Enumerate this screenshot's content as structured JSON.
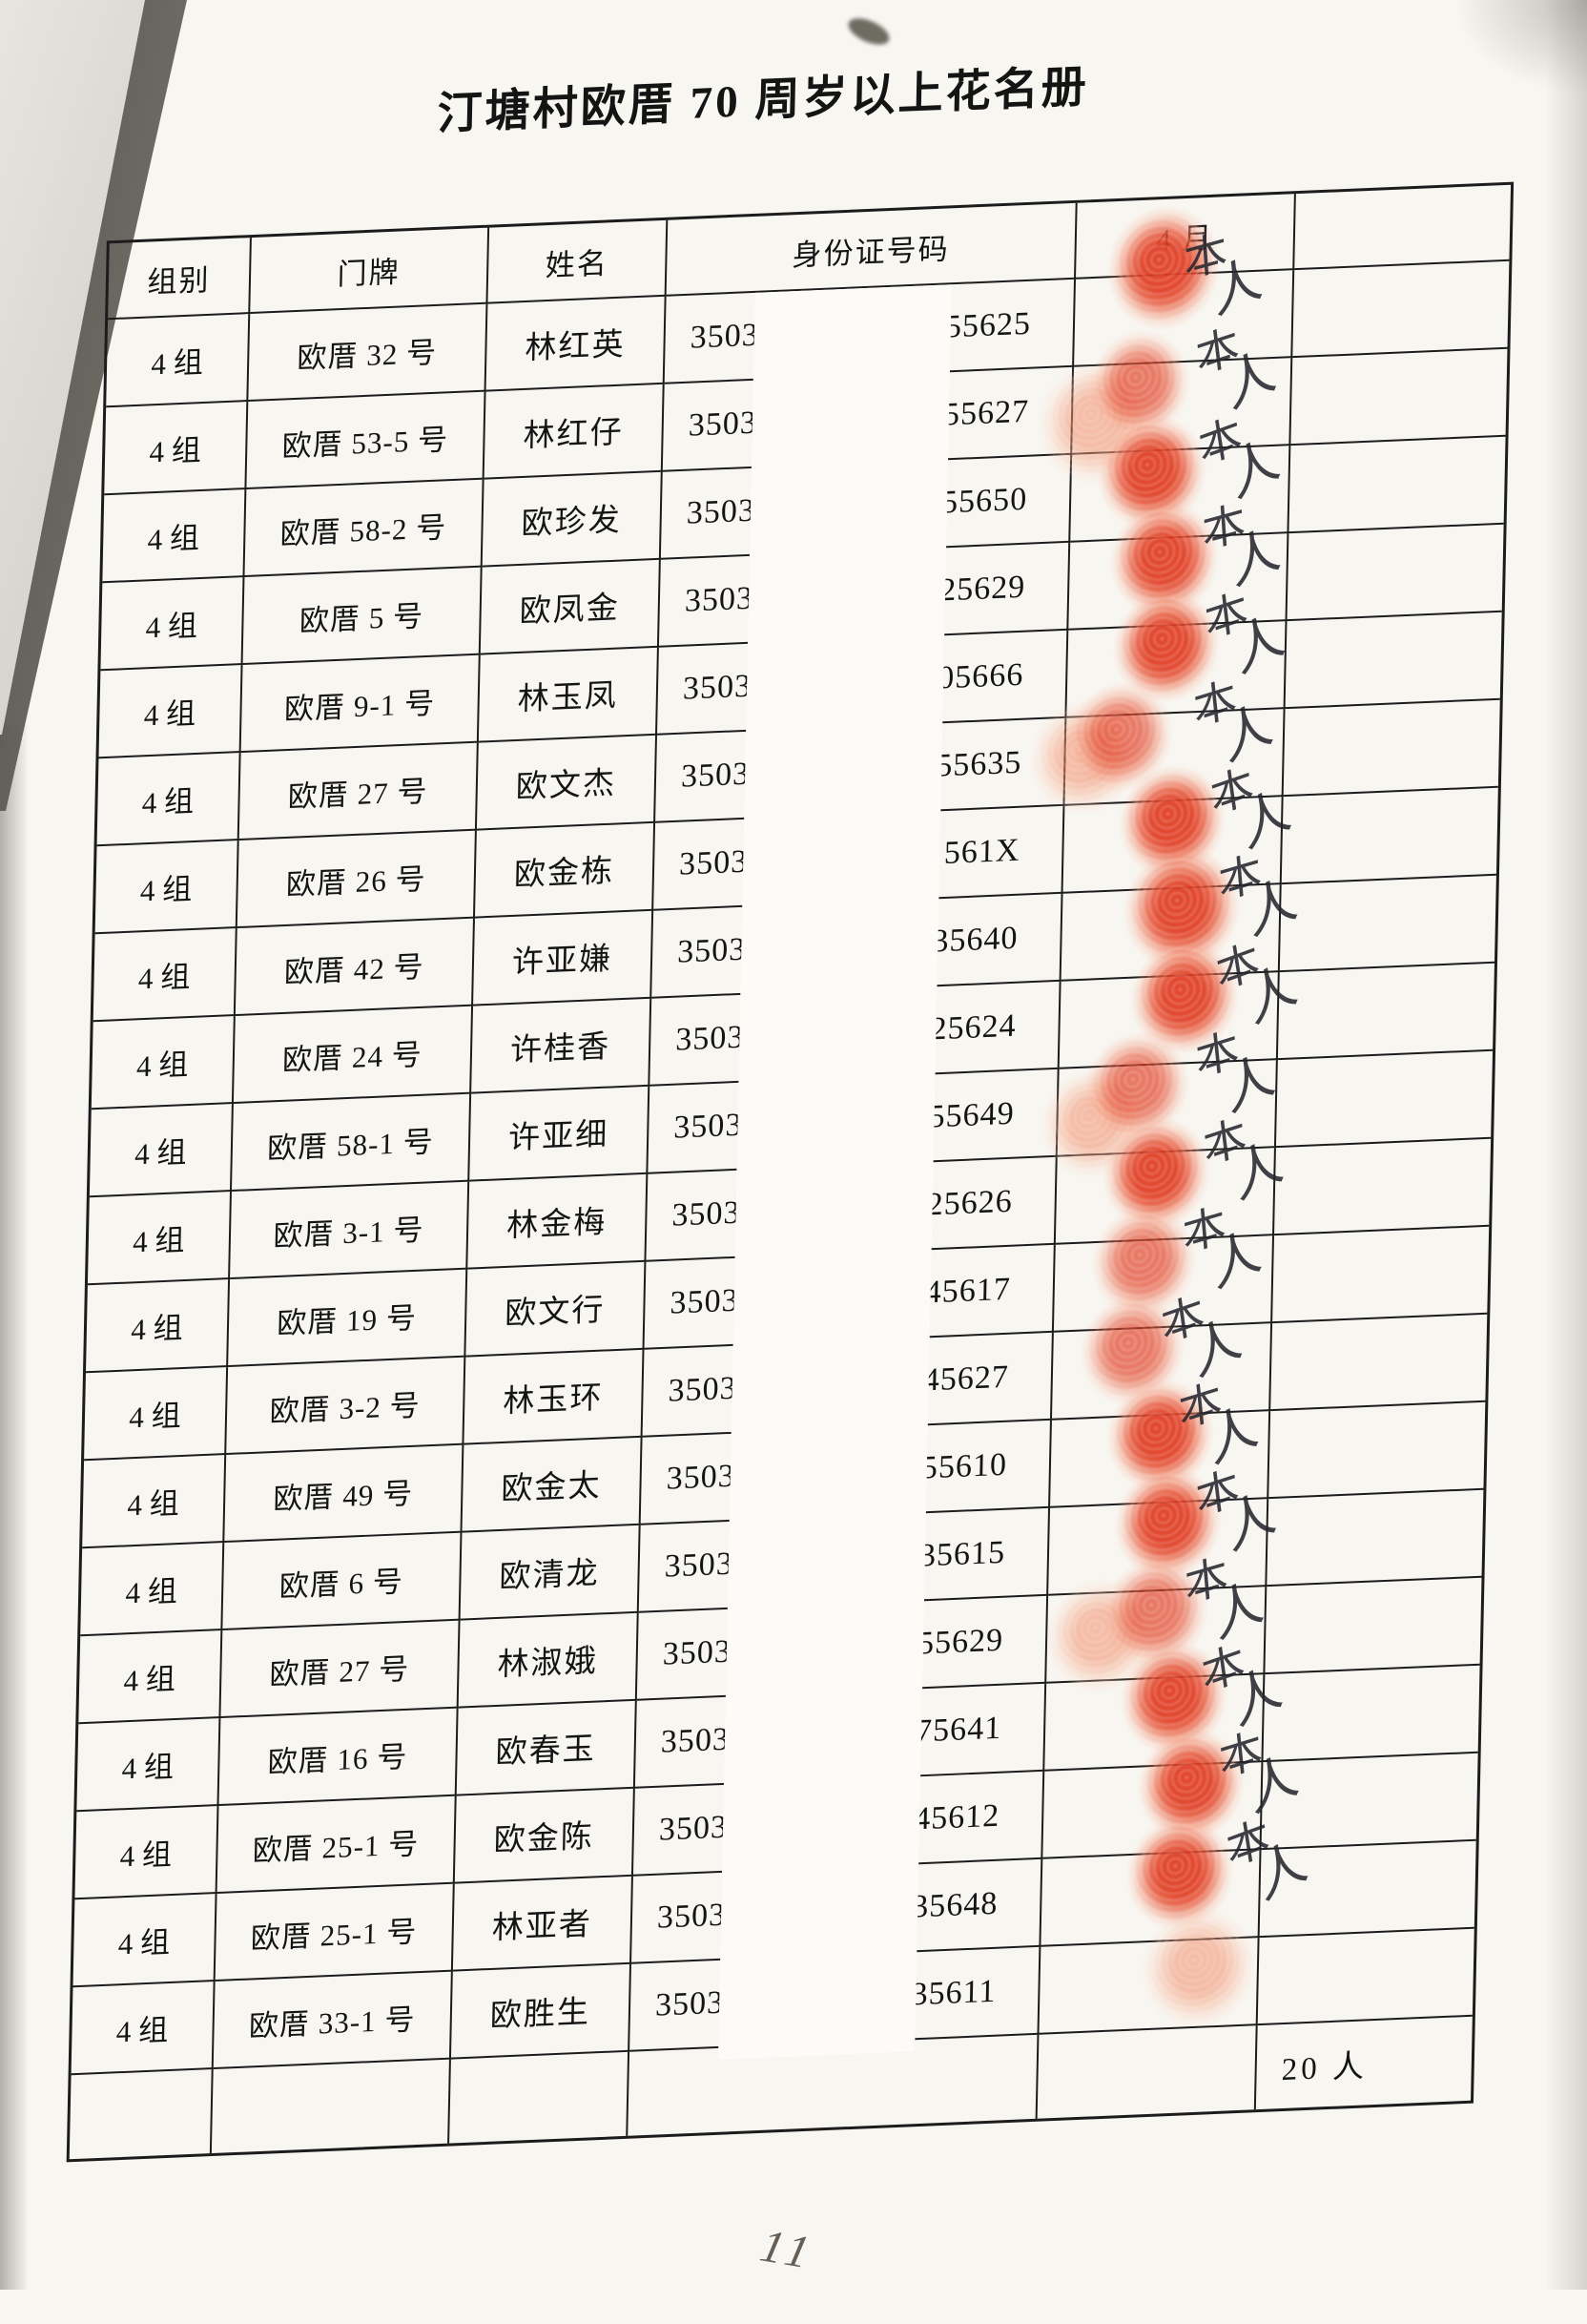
{
  "page": {
    "title": "汀塘村欧厝 70 周岁以上花名册",
    "page_number": "11",
    "footer_total": "20 人"
  },
  "colors": {
    "stamp_red": "#e14a2c",
    "stamp_light": "#f2a584",
    "ink": "#18181a",
    "paper": "#f8f6f1"
  },
  "table": {
    "headers": [
      "组别",
      "门牌",
      "姓名",
      "身份证号码",
      "4 月",
      ""
    ],
    "sign_text": "本人",
    "id_redacted_note": "middle digits covered by white strip",
    "rows": [
      {
        "group": "4 组",
        "house": "欧厝 32 号",
        "name": "林红英",
        "id_prefix": "3503",
        "id_suffix": "55625",
        "mark": {
          "fp": [
            33,
            -73,
            118,
            130,
            "a"
          ],
          "sign": [
            114,
            -55,
            -7
          ]
        }
      },
      {
        "group": "4 组",
        "house": "欧厝 53-5 号",
        "name": "林红仔",
        "id_prefix": "3503",
        "id_suffix": "55627",
        "mark": {
          "fp": [
            17,
            -36,
            105,
            115,
            "b"
          ],
          "fp2": [
            -36,
            -6,
            120,
            130,
            "c"
          ],
          "sign": [
            129,
            -48,
            -10
          ]
        }
      },
      {
        "group": "4 组",
        "house": "欧厝 58-2 号",
        "name": "欧珍发",
        "id_prefix": "3503",
        "id_suffix": "55650",
        "mark": {
          "fp": [
            27,
            -38,
            114,
            120,
            "a"
          ],
          "sign": [
            134,
            -46,
            -12
          ]
        }
      },
      {
        "group": "4 组",
        "house": "欧厝 5 号",
        "name": "欧凤金",
        "id_prefix": "3503",
        "id_suffix": "25629",
        "mark": {
          "fp": [
            42,
            -38,
            114,
            120,
            "a"
          ],
          "sign": [
            139,
            -46,
            -7
          ]
        }
      },
      {
        "group": "4 组",
        "house": "欧厝 9-1 号",
        "name": "林玉凤",
        "id_prefix": "3503",
        "id_suffix": "05666",
        "mark": {
          "fp": [
            47,
            -38,
            112,
            118,
            "a"
          ],
          "sign": [
            144,
            -46,
            -10
          ]
        }
      },
      {
        "group": "4 组",
        "house": "欧厝 27 号",
        "name": "欧文杰",
        "id_prefix": "3503",
        "id_suffix": "55635",
        "mark": {
          "fp": [
            2,
            -36,
            110,
            116,
            "b"
          ],
          "fp2": [
            -38,
            -18,
            115,
            120,
            "c"
          ],
          "sign": [
            134,
            -46,
            -9
          ]
        }
      },
      {
        "group": "4 组",
        "house": "欧厝 26 号",
        "name": "欧金栋",
        "id_prefix": "3503",
        "id_suffix": "561X",
        "mark": {
          "fp": [
            57,
            -38,
            112,
            118,
            "a"
          ],
          "sign": [
            154,
            -46,
            -11
          ]
        }
      },
      {
        "group": "4 组",
        "house": "欧厝 42 号",
        "name": "许亚嫌",
        "id_prefix": "3503",
        "id_suffix": "35640",
        "mark": {
          "fp": [
            64,
            -44,
            122,
            130,
            "a"
          ],
          "sign": [
            164,
            -46,
            -8
          ]
        }
      },
      {
        "group": "4 组",
        "house": "欧厝 24 号",
        "name": "许桂香",
        "id_prefix": "3503",
        "id_suffix": "25624",
        "mark": {
          "fp": [
            73,
            -38,
            114,
            120,
            "a"
          ],
          "sign": [
            164,
            -46,
            -12
          ]
        }
      },
      {
        "group": "4 组",
        "house": "欧厝 58-1 号",
        "name": "许亚细",
        "id_prefix": "3503",
        "id_suffix": "55649",
        "mark": {
          "fp": [
            27,
            -36,
            110,
            116,
            "b"
          ],
          "fp2": [
            -18,
            0,
            110,
            116,
            "c"
          ],
          "sign": [
            144,
            -46,
            -9
          ]
        }
      },
      {
        "group": "4 组",
        "house": "欧厝 3-1 号",
        "name": "林金梅",
        "id_prefix": "3503",
        "id_suffix": "25626",
        "mark": {
          "fp": [
            48,
            -37,
            112,
            118,
            "a"
          ],
          "sign": [
            154,
            -46,
            -10
          ]
        }
      },
      {
        "group": "4 组",
        "house": "欧厝 19 号",
        "name": "欧文行",
        "id_prefix": "3503",
        "id_suffix": "45617",
        "mark": {
          "fp": [
            38,
            -36,
            110,
            116,
            "b"
          ],
          "sign": [
            134,
            -46,
            -8
          ]
        }
      },
      {
        "group": "4 组",
        "house": "欧厝 3-2 号",
        "name": "林玉环",
        "id_prefix": "3503",
        "id_suffix": "45627",
        "mark": {
          "fp": [
            28,
            -36,
            110,
            116,
            "b"
          ],
          "sign": [
            114,
            -46,
            -11
          ]
        }
      },
      {
        "group": "4 组",
        "house": "欧厝 49 号",
        "name": "欧金太",
        "id_prefix": "3503",
        "id_suffix": "55610",
        "mark": {
          "fp": [
            58,
            -38,
            112,
            118,
            "a"
          ],
          "sign": [
            134,
            -46,
            -9
          ]
        }
      },
      {
        "group": "4 组",
        "house": "欧厝 6 号",
        "name": "欧清龙",
        "id_prefix": "3503",
        "id_suffix": "35615",
        "mark": {
          "fp": [
            68,
            -38,
            112,
            118,
            "a"
          ],
          "sign": [
            154,
            -46,
            -10
          ]
        }
      },
      {
        "group": "4 组",
        "house": "欧厝 27 号",
        "name": "林淑娥",
        "id_prefix": "3503",
        "id_suffix": "55629",
        "mark": {
          "fp": [
            58,
            -36,
            110,
            116,
            "b"
          ],
          "fp2": [
            -2,
            -16,
            115,
            120,
            "c"
          ],
          "sign": [
            144,
            -46,
            -8
          ]
        }
      },
      {
        "group": "4 组",
        "house": "欧厝 16 号",
        "name": "欧春玉",
        "id_prefix": "3503",
        "id_suffix": "75641",
        "mark": {
          "fp": [
            78,
            -38,
            112,
            118,
            "a"
          ],
          "sign": [
            164,
            -46,
            -11
          ]
        }
      },
      {
        "group": "4 组",
        "house": "欧厝 25-1 号",
        "name": "欧金陈",
        "id_prefix": "3503",
        "id_suffix": "45612",
        "mark": {
          "fp": [
            98,
            -38,
            112,
            118,
            "a"
          ],
          "sign": [
            184,
            -46,
            -9
          ]
        }
      },
      {
        "group": "4 组",
        "house": "欧厝 25-1 号",
        "name": "林亚者",
        "id_prefix": "3503",
        "id_suffix": "35648",
        "mark": {
          "fp": [
            88,
            -38,
            112,
            118,
            "a"
          ],
          "fp2": [
            106,
            58,
            120,
            126,
            "c"
          ],
          "sign": [
            194,
            -46,
            -12
          ]
        }
      },
      {
        "group": "4 组",
        "house": "欧厝 33-1 号",
        "name": "欧胜生",
        "id_prefix": "3503",
        "id_suffix": "35611",
        "mark": null
      }
    ]
  }
}
